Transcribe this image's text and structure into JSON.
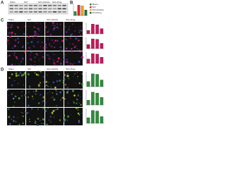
{
  "figure": {
    "A": {
      "label": "A",
      "lanes": [
        "Sham",
        "SCI",
        "SCI+Vehicle",
        "SCI+Drug"
      ]
    },
    "B": {
      "label": "B",
      "legend": [
        {
          "name": "Sham",
          "color": "#2e8b3a"
        },
        {
          "name": "SCI",
          "color": "#d62728"
        },
        {
          "name": "SCI+Vehicle",
          "color": "#f29b1d"
        },
        {
          "name": "SCI+Drug",
          "color": "#1f6f3a"
        }
      ],
      "chart": {
        "type": "bar",
        "values": [
          1,
          2.6,
          2.4,
          1.4
        ]
      }
    },
    "C": {
      "label": "C",
      "columns": [
        "Sham",
        "SCI",
        "SCI+Vehicle",
        "SCI+Drug"
      ],
      "charts": [
        {
          "type": "bar",
          "color": "#c2185b",
          "values": [
            1,
            2.8,
            2.6,
            1.5
          ]
        },
        {
          "type": "bar",
          "color": "#c2185b",
          "values": [
            1,
            2.4,
            2.3,
            1.3
          ]
        },
        {
          "type": "bar",
          "color": "#c2185b",
          "values": [
            1,
            2.2,
            2.1,
            1.4
          ]
        }
      ]
    },
    "D": {
      "label": "D",
      "columns": [
        "Sham",
        "SCI",
        "SCI+Vehicle",
        "SCI+Drug"
      ],
      "charts": [
        {
          "type": "bar",
          "color": "#2e8b3a",
          "values": [
            1,
            2.5,
            2.4,
            1.3
          ]
        },
        {
          "type": "bar",
          "color": "#2e8b3a",
          "values": [
            1,
            2.7,
            2.5,
            1.6
          ]
        },
        {
          "type": "bar",
          "color": "#2e8b3a",
          "values": [
            1,
            2.3,
            2.2,
            1.2
          ]
        }
      ]
    }
  }
}
